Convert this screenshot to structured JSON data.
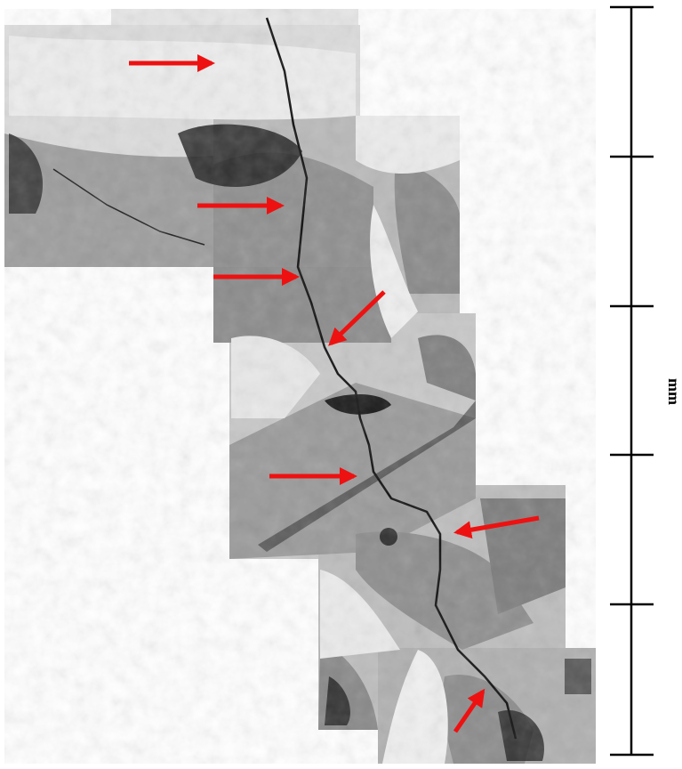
{
  "scale_label": "mm"
}
